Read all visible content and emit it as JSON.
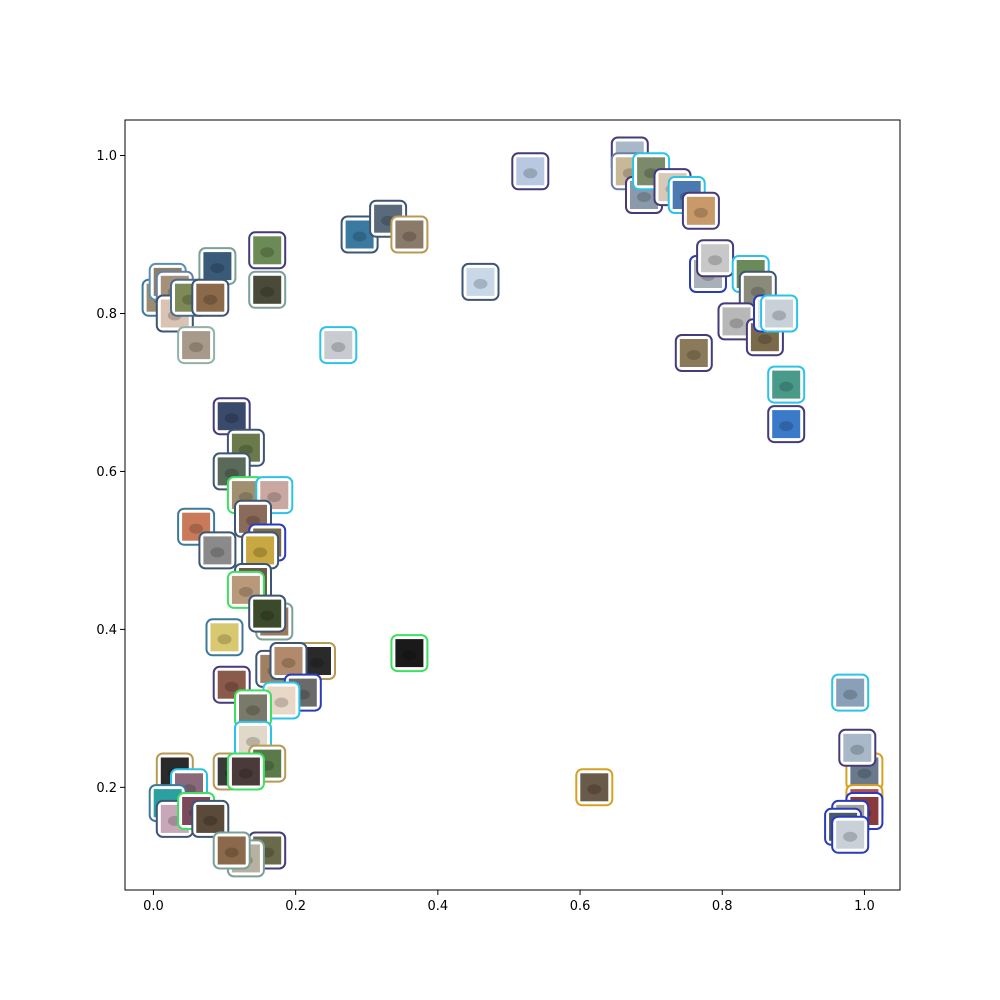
{
  "chart_data": {
    "type": "scatter",
    "title": "",
    "xlabel": "",
    "ylabel": "",
    "xlim": [
      -0.04,
      1.05
    ],
    "ylim": [
      0.07,
      1.045
    ],
    "xticks": [
      0.0,
      0.2,
      0.4,
      0.6,
      0.8,
      1.0
    ],
    "xtick_labels": [
      "0.0",
      "0.2",
      "0.4",
      "0.6",
      "0.8",
      "1.0"
    ],
    "yticks": [
      0.2,
      0.4,
      0.6,
      0.8,
      1.0
    ],
    "ytick_labels": [
      "0.2",
      "0.4",
      "0.6",
      "0.8",
      "1.0"
    ],
    "grid": false,
    "legend": "none",
    "marker": "image thumbnail with colored rounded frame",
    "points": [
      {
        "x": 0.01,
        "y": 0.82,
        "frame": "#3d7a9a",
        "thumb": "#9a8b72"
      },
      {
        "x": 0.02,
        "y": 0.84,
        "frame": "#5b8fb0",
        "thumb": "#8c7f6a"
      },
      {
        "x": 0.03,
        "y": 0.83,
        "frame": "#6a7fa8",
        "thumb": "#a59079"
      },
      {
        "x": 0.03,
        "y": 0.8,
        "frame": "#3e5573",
        "thumb": "#d9c3b5"
      },
      {
        "x": 0.05,
        "y": 0.82,
        "frame": "#4a6b8a",
        "thumb": "#7d8a55"
      },
      {
        "x": 0.09,
        "y": 0.86,
        "frame": "#7aa098",
        "thumb": "#3a5a7a"
      },
      {
        "x": 0.08,
        "y": 0.82,
        "frame": "#3e5573",
        "thumb": "#8a6a4a"
      },
      {
        "x": 0.16,
        "y": 0.88,
        "frame": "#453b78",
        "thumb": "#6b8a55"
      },
      {
        "x": 0.16,
        "y": 0.83,
        "frame": "#7aa098",
        "thumb": "#4a4a3a"
      },
      {
        "x": 0.06,
        "y": 0.76,
        "frame": "#8fb3a8",
        "thumb": "#a89a8a"
      },
      {
        "x": 0.26,
        "y": 0.76,
        "frame": "#2cc3e8",
        "thumb": "#c8ccd0"
      },
      {
        "x": 0.29,
        "y": 0.9,
        "frame": "#3e5573",
        "thumb": "#3a7aa0"
      },
      {
        "x": 0.33,
        "y": 0.92,
        "frame": "#3e5573",
        "thumb": "#5a6a7a"
      },
      {
        "x": 0.36,
        "y": 0.9,
        "frame": "#b89a55",
        "thumb": "#8a7a6a"
      },
      {
        "x": 0.46,
        "y": 0.84,
        "frame": "#3e5573",
        "thumb": "#c8d8e8"
      },
      {
        "x": 0.53,
        "y": 0.98,
        "frame": "#453b78",
        "thumb": "#b8c8e0"
      },
      {
        "x": 0.67,
        "y": 1.0,
        "frame": "#453b78",
        "thumb": "#a8b8c8"
      },
      {
        "x": 0.67,
        "y": 0.98,
        "frame": "#6a7fa8",
        "thumb": "#c8b898"
      },
      {
        "x": 0.69,
        "y": 0.95,
        "frame": "#453b78",
        "thumb": "#8a9aaa"
      },
      {
        "x": 0.7,
        "y": 0.98,
        "frame": "#2cc3e8",
        "thumb": "#7a8a6a"
      },
      {
        "x": 0.73,
        "y": 0.96,
        "frame": "#453b78",
        "thumb": "#d8c8b8"
      },
      {
        "x": 0.75,
        "y": 0.95,
        "frame": "#2cc3e8",
        "thumb": "#4a7ab0"
      },
      {
        "x": 0.77,
        "y": 0.93,
        "frame": "#453b78",
        "thumb": "#c89a6a"
      },
      {
        "x": 0.78,
        "y": 0.85,
        "frame": "#2a3cb8",
        "thumb": "#aab0b8"
      },
      {
        "x": 0.79,
        "y": 0.87,
        "frame": "#453b78",
        "thumb": "#c8c8c8"
      },
      {
        "x": 0.84,
        "y": 0.85,
        "frame": "#2cc3e8",
        "thumb": "#6a8a5a"
      },
      {
        "x": 0.85,
        "y": 0.83,
        "frame": "#3e5573",
        "thumb": "#8a8a7a"
      },
      {
        "x": 0.82,
        "y": 0.79,
        "frame": "#453b78",
        "thumb": "#b8b8b8"
      },
      {
        "x": 0.86,
        "y": 0.77,
        "frame": "#453b78",
        "thumb": "#7a6a4a"
      },
      {
        "x": 0.87,
        "y": 0.8,
        "frame": "#2a3cb8",
        "thumb": "#e0e4e8"
      },
      {
        "x": 0.88,
        "y": 0.8,
        "frame": "#2cc3e8",
        "thumb": "#c8d0d8"
      },
      {
        "x": 0.76,
        "y": 0.75,
        "frame": "#453b78",
        "thumb": "#8a7a5a"
      },
      {
        "x": 0.89,
        "y": 0.71,
        "frame": "#2cc3e8",
        "thumb": "#4a9a8a"
      },
      {
        "x": 0.89,
        "y": 0.66,
        "frame": "#453b78",
        "thumb": "#3a7ac8"
      },
      {
        "x": 0.11,
        "y": 0.67,
        "frame": "#453b78",
        "thumb": "#3a4a6a"
      },
      {
        "x": 0.13,
        "y": 0.63,
        "frame": "#3e5573",
        "thumb": "#6a7a4a"
      },
      {
        "x": 0.11,
        "y": 0.6,
        "frame": "#3e5573",
        "thumb": "#5a6a5a"
      },
      {
        "x": 0.13,
        "y": 0.57,
        "frame": "#3ee060",
        "thumb": "#a09070"
      },
      {
        "x": 0.17,
        "y": 0.57,
        "frame": "#2cc3e8",
        "thumb": "#c8a8a0"
      },
      {
        "x": 0.06,
        "y": 0.53,
        "frame": "#3d7a9a",
        "thumb": "#c87a5a"
      },
      {
        "x": 0.14,
        "y": 0.54,
        "frame": "#3e5573",
        "thumb": "#8a6a5a"
      },
      {
        "x": 0.16,
        "y": 0.51,
        "frame": "#2a3cb8",
        "thumb": "#7a6a4a"
      },
      {
        "x": 0.09,
        "y": 0.5,
        "frame": "#3e5573",
        "thumb": "#8a8a8a"
      },
      {
        "x": 0.15,
        "y": 0.5,
        "frame": "#3e5573",
        "thumb": "#c8a840"
      },
      {
        "x": 0.14,
        "y": 0.46,
        "frame": "#3e5573",
        "thumb": "#6a5a4a"
      },
      {
        "x": 0.13,
        "y": 0.45,
        "frame": "#3ee060",
        "thumb": "#b89a7a"
      },
      {
        "x": 0.17,
        "y": 0.41,
        "frame": "#7aa098",
        "thumb": "#9a7a5a"
      },
      {
        "x": 0.16,
        "y": 0.42,
        "frame": "#3e5573",
        "thumb": "#3a4a2a"
      },
      {
        "x": 0.1,
        "y": 0.39,
        "frame": "#3d7a9a",
        "thumb": "#d8c870"
      },
      {
        "x": 0.23,
        "y": 0.36,
        "frame": "#b89a55",
        "thumb": "#2a2a2a"
      },
      {
        "x": 0.17,
        "y": 0.35,
        "frame": "#3e5573",
        "thumb": "#a08060"
      },
      {
        "x": 0.19,
        "y": 0.36,
        "frame": "#3e5573",
        "thumb": "#b08a6a"
      },
      {
        "x": 0.21,
        "y": 0.32,
        "frame": "#2a3cb8",
        "thumb": "#6a6a6a"
      },
      {
        "x": 0.11,
        "y": 0.33,
        "frame": "#453b78",
        "thumb": "#8a5a4a"
      },
      {
        "x": 0.18,
        "y": 0.31,
        "frame": "#2cc3e8",
        "thumb": "#e8d8c8"
      },
      {
        "x": 0.14,
        "y": 0.3,
        "frame": "#3ee060",
        "thumb": "#7a7a6a"
      },
      {
        "x": 0.14,
        "y": 0.26,
        "frame": "#2cc3e8",
        "thumb": "#e0d8c8"
      },
      {
        "x": 0.16,
        "y": 0.23,
        "frame": "#b89a55",
        "thumb": "#5a7a4a"
      },
      {
        "x": 0.03,
        "y": 0.22,
        "frame": "#b89a55",
        "thumb": "#2a2a2a"
      },
      {
        "x": 0.11,
        "y": 0.22,
        "frame": "#b89a55",
        "thumb": "#3a3a3a"
      },
      {
        "x": 0.13,
        "y": 0.22,
        "frame": "#3ee060",
        "thumb": "#4a3a3a"
      },
      {
        "x": 0.05,
        "y": 0.2,
        "frame": "#2cc3e8",
        "thumb": "#8a6a7a"
      },
      {
        "x": 0.02,
        "y": 0.18,
        "frame": "#3d7a9a",
        "thumb": "#2aa0a0"
      },
      {
        "x": 0.03,
        "y": 0.16,
        "frame": "#3e5573",
        "thumb": "#c8a8b8"
      },
      {
        "x": 0.06,
        "y": 0.17,
        "frame": "#3ee060",
        "thumb": "#7a4a5a"
      },
      {
        "x": 0.08,
        "y": 0.16,
        "frame": "#3e5573",
        "thumb": "#5a4a3a"
      },
      {
        "x": 0.16,
        "y": 0.12,
        "frame": "#453b78",
        "thumb": "#6a6a4a"
      },
      {
        "x": 0.13,
        "y": 0.11,
        "frame": "#7aa098",
        "thumb": "#b8b0a0"
      },
      {
        "x": 0.11,
        "y": 0.12,
        "frame": "#7aa098",
        "thumb": "#8a6a4a"
      },
      {
        "x": 0.36,
        "y": 0.37,
        "frame": "#3ee060",
        "thumb": "#1a1a1a"
      },
      {
        "x": 0.62,
        "y": 0.2,
        "frame": "#d8a020",
        "thumb": "#6a5a4a"
      },
      {
        "x": 0.98,
        "y": 0.32,
        "frame": "#2cc3e8",
        "thumb": "#8aa0b8"
      },
      {
        "x": 1.0,
        "y": 0.22,
        "frame": "#d8a020",
        "thumb": "#6a7a8a"
      },
      {
        "x": 0.99,
        "y": 0.25,
        "frame": "#453b78",
        "thumb": "#a8b8c8"
      },
      {
        "x": 1.0,
        "y": 0.18,
        "frame": "#d8a020",
        "thumb": "#b84a4a"
      },
      {
        "x": 1.0,
        "y": 0.17,
        "frame": "#2a3cb8",
        "thumb": "#8a3a3a"
      },
      {
        "x": 0.98,
        "y": 0.16,
        "frame": "#2a3cb8",
        "thumb": "#a0a0a0"
      },
      {
        "x": 0.97,
        "y": 0.15,
        "frame": "#2a3cb8",
        "thumb": "#4a5a6a"
      },
      {
        "x": 0.98,
        "y": 0.14,
        "frame": "#2a3cb8",
        "thumb": "#c8d0d8"
      }
    ]
  }
}
